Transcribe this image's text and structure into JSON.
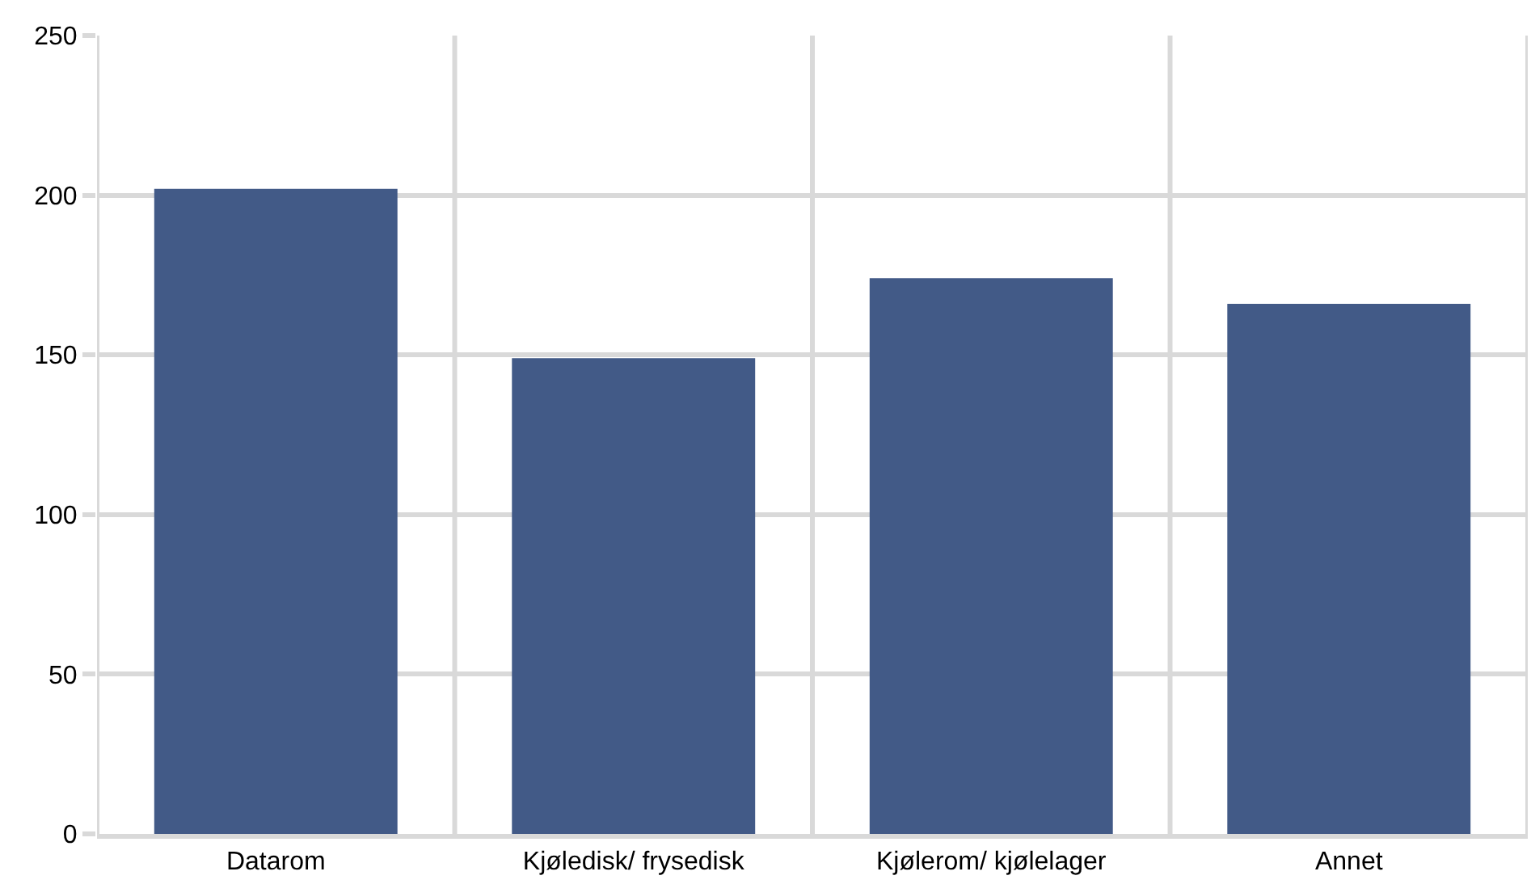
{
  "chart_data": {
    "type": "bar",
    "categories": [
      "Datarom",
      "Kjøledisk/ frysedisk",
      "Kjølerom/ kjølelager",
      "Annet"
    ],
    "values": [
      202,
      149,
      174,
      166
    ],
    "color": "#425a87",
    "ylim": [
      0,
      250
    ],
    "yticks": [
      0,
      50,
      100,
      150,
      200,
      250
    ],
    "grid": true
  }
}
